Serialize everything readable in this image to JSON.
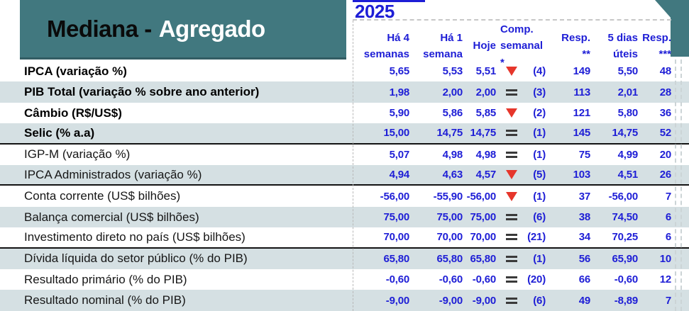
{
  "title": {
    "part1": "Mediana -",
    "part2": "Agregado"
  },
  "year": "2025",
  "colors": {
    "teal": "#41787f",
    "row_alt": "#d5e0e3",
    "blue": "#1e1ed6",
    "red": "#e6362b",
    "equals_dark": "#3a3a3a"
  },
  "columns": [
    {
      "line1": "Há 4",
      "line2": "semanas"
    },
    {
      "line1": "Há 1",
      "line2": "semana"
    },
    {
      "line1": "Hoje",
      "line2": ""
    },
    {
      "line1": "Comp.",
      "line2": "semanal *"
    },
    {
      "line1": "Resp.",
      "line2": "**"
    },
    {
      "line1": "5 dias",
      "line2": "úteis"
    },
    {
      "line1": "Resp.",
      "line2": "***"
    }
  ],
  "rows": [
    {
      "label": "IPCA (variação %)",
      "bold": true,
      "ha4": "5,65",
      "ha1": "5,53",
      "hoje": "5,51",
      "trend": "down",
      "rank": "(4)",
      "resp": "149",
      "d5": "5,50",
      "resp3": "48",
      "group_end": false
    },
    {
      "label": "PIB Total (variação % sobre ano anterior)",
      "bold": true,
      "ha4": "1,98",
      "ha1": "2,00",
      "hoje": "2,00",
      "trend": "equal",
      "rank": "(3)",
      "resp": "113",
      "d5": "2,01",
      "resp3": "28",
      "group_end": false
    },
    {
      "label": "Câmbio (R$/US$)",
      "bold": true,
      "ha4": "5,90",
      "ha1": "5,86",
      "hoje": "5,85",
      "trend": "down",
      "rank": "(2)",
      "resp": "121",
      "d5": "5,80",
      "resp3": "36",
      "group_end": false
    },
    {
      "label": "Selic (% a.a)",
      "bold": true,
      "ha4": "15,00",
      "ha1": "14,75",
      "hoje": "14,75",
      "trend": "equal",
      "rank": "(1)",
      "resp": "145",
      "d5": "14,75",
      "resp3": "52",
      "group_end": true
    },
    {
      "label": "IGP-M (variação %)",
      "bold": false,
      "ha4": "5,07",
      "ha1": "4,98",
      "hoje": "4,98",
      "trend": "equal",
      "rank": "(1)",
      "resp": "75",
      "d5": "4,99",
      "resp3": "20",
      "group_end": false
    },
    {
      "label": "IPCA Administrados (variação %)",
      "bold": false,
      "ha4": "4,94",
      "ha1": "4,63",
      "hoje": "4,57",
      "trend": "down",
      "rank": "(5)",
      "resp": "103",
      "d5": "4,51",
      "resp3": "26",
      "group_end": true
    },
    {
      "label": "Conta corrente (US$ bilhões)",
      "bold": false,
      "ha4": "-56,00",
      "ha1": "-55,90",
      "hoje": "-56,00",
      "trend": "down",
      "rank": "(1)",
      "resp": "37",
      "d5": "-56,00",
      "resp3": "7",
      "group_end": false
    },
    {
      "label": "Balança comercial (US$ bilhões)",
      "bold": false,
      "ha4": "75,00",
      "ha1": "75,00",
      "hoje": "75,00",
      "trend": "equal",
      "rank": "(6)",
      "resp": "38",
      "d5": "74,50",
      "resp3": "6",
      "group_end": false
    },
    {
      "label": "Investimento direto no país (US$ bilhões)",
      "bold": false,
      "ha4": "70,00",
      "ha1": "70,00",
      "hoje": "70,00",
      "trend": "equal",
      "rank": "(21)",
      "resp": "34",
      "d5": "70,25",
      "resp3": "6",
      "group_end": true
    },
    {
      "label": "Dívida líquida do setor público (% do PIB)",
      "bold": false,
      "ha4": "65,80",
      "ha1": "65,80",
      "hoje": "65,80",
      "trend": "equal",
      "rank": "(1)",
      "resp": "56",
      "d5": "65,90",
      "resp3": "10",
      "group_end": false
    },
    {
      "label": "Resultado primário (% do PIB)",
      "bold": false,
      "ha4": "-0,60",
      "ha1": "-0,60",
      "hoje": "-0,60",
      "trend": "equal",
      "rank": "(20)",
      "resp": "66",
      "d5": "-0,60",
      "resp3": "12",
      "group_end": false
    },
    {
      "label": "Resultado nominal (% do PIB)",
      "bold": false,
      "ha4": "-9,00",
      "ha1": "-9,00",
      "hoje": "-9,00",
      "trend": "equal",
      "rank": "(6)",
      "resp": "49",
      "d5": "-8,89",
      "resp3": "7",
      "group_end": false
    }
  ]
}
